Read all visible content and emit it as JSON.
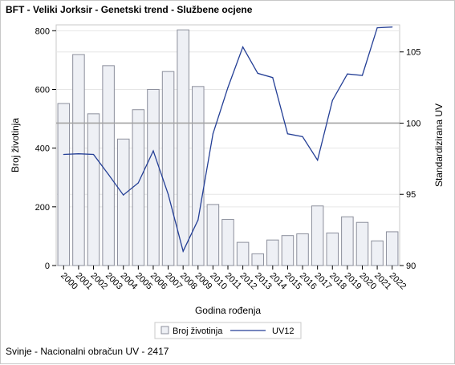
{
  "title": "BFT - Veliki Jorksir - Genetski trend - Službene ocjene",
  "footnote": "Svinje - Nacionalni obračun UV - 2417",
  "colors": {
    "bar_fill": "#eef0f5",
    "bar_stroke": "#8c8f9c",
    "line": "#243f96",
    "refline": "#a3a3a3",
    "grid": "#e6e6e6"
  },
  "chart_data": {
    "type": "bar",
    "categories": [
      "2000",
      "2001",
      "2002",
      "2003",
      "2004",
      "2005",
      "2006",
      "2007",
      "2008",
      "2009",
      "2010",
      "2011",
      "2012",
      "2013",
      "2014",
      "2015",
      "2016",
      "2017",
      "2018",
      "2019",
      "2020",
      "2021",
      "2022"
    ],
    "series": [
      {
        "name": "Broj životinja",
        "type": "bar",
        "axis": "left",
        "values": [
          552,
          719,
          517,
          681,
          431,
          531,
          600,
          661,
          803,
          610,
          208,
          157,
          79,
          40,
          87,
          102,
          108,
          203,
          111,
          166,
          147,
          84,
          115
        ]
      },
      {
        "name": "UV12",
        "type": "line",
        "axis": "right",
        "values": [
          97.8,
          97.85,
          97.8,
          96.4,
          94.95,
          95.8,
          98.05,
          95.0,
          91.0,
          93.2,
          99.25,
          102.5,
          105.35,
          103.5,
          103.2,
          99.25,
          99.05,
          97.4,
          101.6,
          103.45,
          103.35,
          106.7,
          106.75
        ]
      }
    ],
    "xlabel": "Godina rođenja",
    "ylabel": "Broj životinja",
    "y2label": "Standardizirana UV",
    "ylim": [
      0,
      820
    ],
    "y2lim": [
      90,
      106.9
    ],
    "yticks": [
      0,
      200,
      400,
      600,
      800
    ],
    "y2ticks": [
      90,
      95,
      100,
      105
    ],
    "reference_line": 100,
    "grid": true,
    "legend_position": "bottom"
  }
}
